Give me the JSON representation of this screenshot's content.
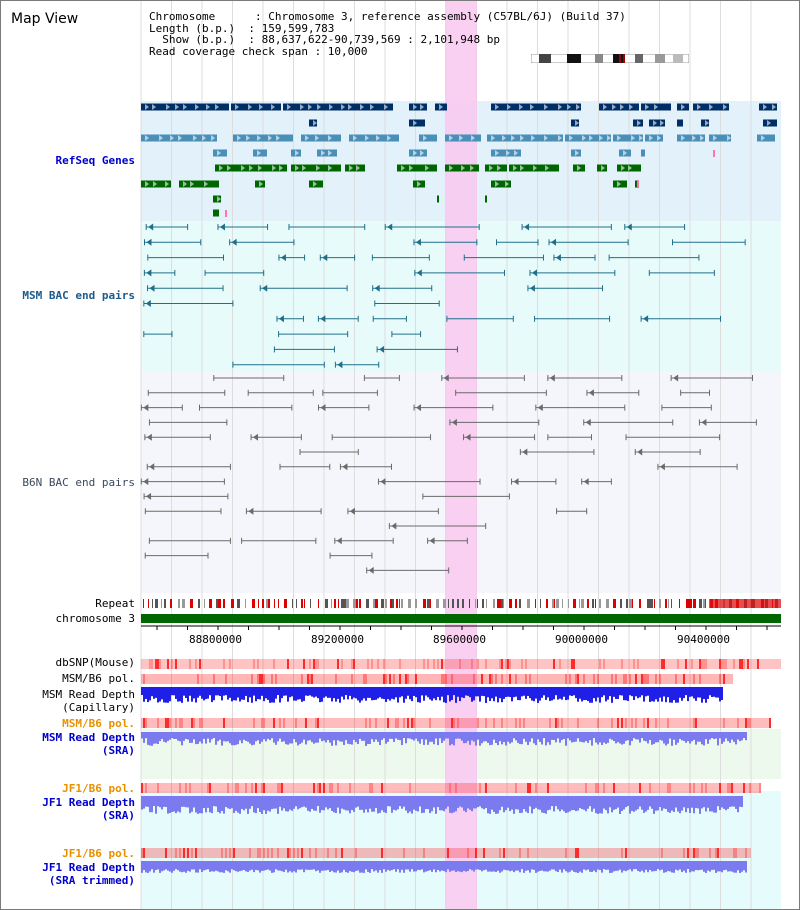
{
  "title": "Map View",
  "header": {
    "chromosome": "Chromosome      : Chromosome 3, reference assembly (C57BL/6J) (Build 37)",
    "length": "Length (b.p.)  : 159,599,783",
    "show": "  Show (b.p.)  : 88,637,622-90,739,569 : 2,101,948 bp",
    "coverage": "Read coverage check span : 10,000"
  },
  "tracks": {
    "refseq": "RefSeq Genes",
    "msm_bac": "MSM BAC end pairs",
    "b6n_bac": "B6N BAC end pairs",
    "repeat": "Repeat",
    "chromosome": "chromosome 3",
    "dbsnp": "dbSNP(Mouse)",
    "msm_b6_pol_1": "MSM/B6 pol.",
    "msm_depth_cap_1": "MSM Read Depth",
    "msm_depth_cap_2": "(Capillary)",
    "msm_b6_pol_2": "MSM/B6 pol.",
    "msm_depth_sra_1": "MSM Read Depth",
    "msm_depth_sra_2": "(SRA)",
    "jf1_b6_pol_1": "JF1/B6 pol.",
    "jf1_depth_sra_1": "JF1 Read Depth",
    "jf1_depth_sra_2": "(SRA)",
    "jf1_b6_pol_2": "JF1/B6 pol.",
    "jf1_depth_trim_1": "JF1 Read Depth",
    "jf1_depth_trim_2": "(SRA trimmed)"
  },
  "axis": {
    "ticks": [
      "88800000",
      "89200000",
      "89600000",
      "90000000",
      "90400000"
    ]
  },
  "colors": {
    "refseq_bg": "#e2f1fa",
    "msm_bg": "#e8fbfb",
    "highlight": "#f9c8f0",
    "chromosome_bar": "#006600",
    "gene_dark": "#002e66",
    "gene_mid": "#4a8fb8",
    "gene_green": "#006600",
    "depth_blue": "#1f1fe8",
    "depth_light": "#7b7bef"
  }
}
